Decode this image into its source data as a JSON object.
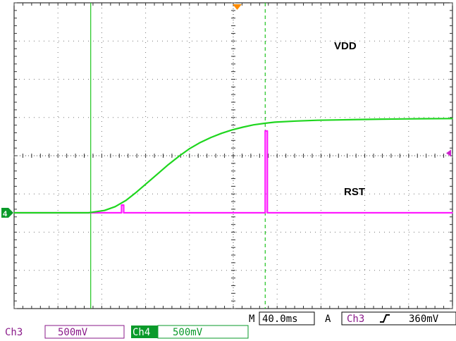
{
  "chart_data": {
    "type": "line",
    "title": "",
    "xlabel": "",
    "ylabel": "",
    "x_unit": "ms",
    "x_per_div": 40,
    "y_per_div_mV": 500,
    "xlim": [
      -165,
      247
    ],
    "grid": "on (10 x 8 dotted divisions)",
    "series": [
      {
        "name": "VDD",
        "channel": "Ch4",
        "color": "#1fd61f",
        "x": [
          -165,
          -95,
          -80,
          -70,
          -60,
          -50,
          -40,
          -30,
          -20,
          -10,
          0,
          10,
          20,
          30,
          40,
          50,
          60,
          70,
          80,
          100,
          120,
          140,
          160,
          180,
          200,
          220,
          247
        ],
        "values": [
          0,
          0,
          30,
          80,
          160,
          270,
          390,
          510,
          630,
          740,
          840,
          920,
          985,
          1040,
          1085,
          1120,
          1150,
          1170,
          1185,
          1200,
          1210,
          1215,
          1220,
          1225,
          1228,
          1230,
          1232
        ]
      },
      {
        "name": "RST",
        "channel": "Ch3",
        "color": "#ff1cff",
        "x": [
          -165,
          -64,
          -64,
          -62,
          -62,
          71,
          71,
          73,
          73,
          247
        ],
        "values": [
          0,
          0,
          100,
          100,
          0,
          0,
          1070,
          1070,
          0,
          0
        ]
      }
    ],
    "cursors_ms": [
      -93,
      71
    ],
    "trigger_position_ms": 0,
    "trigger_level_marker_mV": 780
  },
  "labels": {
    "vdd": "VDD",
    "rst": "RST"
  },
  "ground_marker": "4",
  "status_bar": {
    "timebase_prefix": "M",
    "timebase": "40.0ms",
    "trigger_mode": "A",
    "trigger_source": "Ch3",
    "trigger_slope_icon": "rising-edge-icon",
    "trigger_level": "360mV"
  },
  "channels": [
    {
      "name": "Ch3",
      "scale": "500mV",
      "color": "#8a1a8a"
    },
    {
      "name": "Ch4",
      "scale": "500mV",
      "color": "#0a9a2a"
    }
  ]
}
